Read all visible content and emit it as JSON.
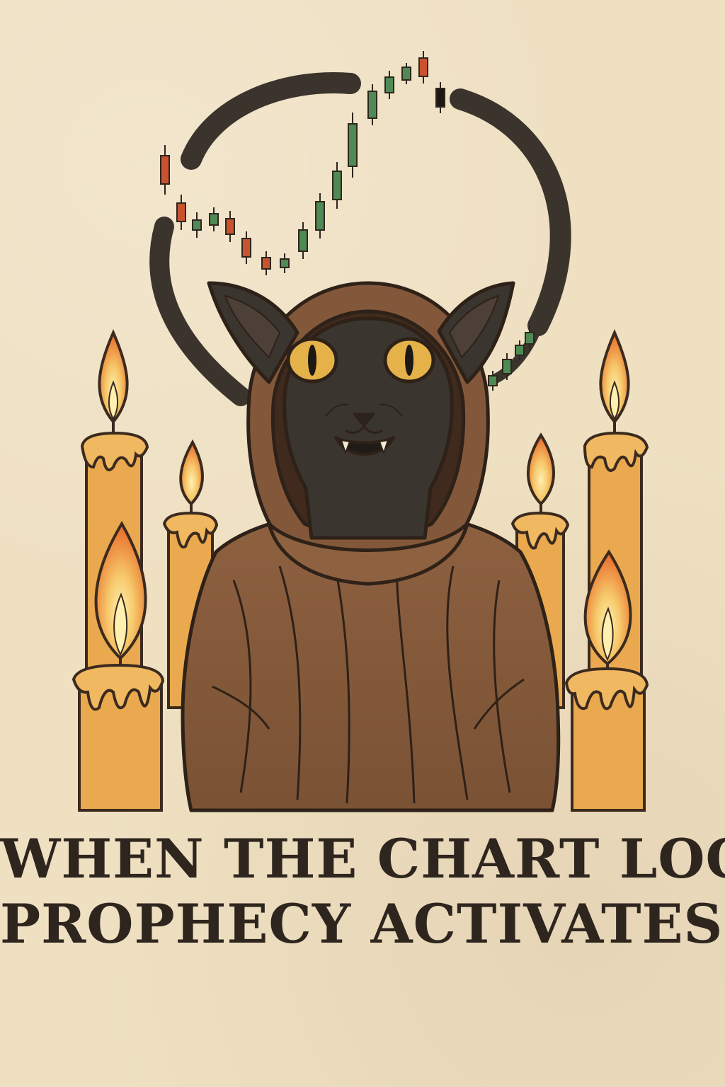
{
  "caption": {
    "line1": "WHEN THE CHART LOOPS,",
    "line2": "PROPHECY ACTIVATES."
  },
  "colors": {
    "paper": "#efe0c2",
    "ink": "#2e261e",
    "robe": "#8a5e3b",
    "cat": "#3a352f",
    "eye": "#e5b24a",
    "candle": "#eaa94e",
    "flame_outer": "#e9742f",
    "flame_inner": "#f6c86a",
    "candle_up": "#4f8a55",
    "candle_down": "#c9532f"
  },
  "icons": {
    "halo": "ink-brush-circle",
    "chart": "candlestick-chart",
    "figure": "hooded-black-cat",
    "candles": "lit-candles"
  }
}
